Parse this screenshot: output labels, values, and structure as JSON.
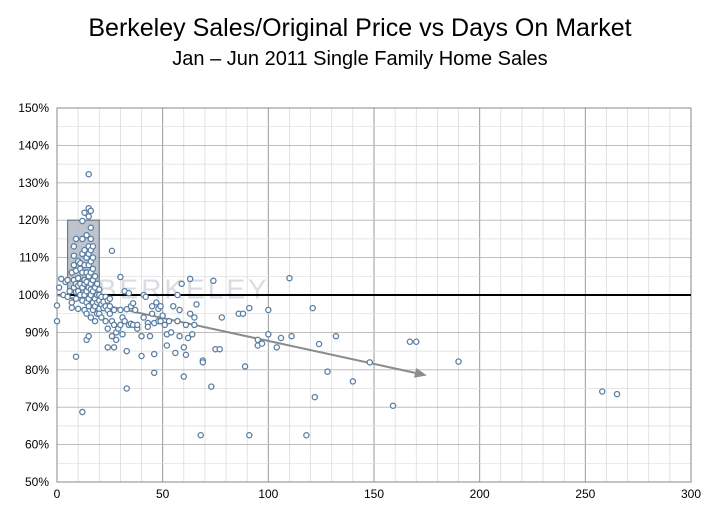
{
  "chart_data": {
    "type": "scatter",
    "title": "Berkeley Sales/Original Price vs Days On Market",
    "subtitle": "Jan – Jun 2011 Single Family Home Sales",
    "xlabel": "",
    "ylabel": "",
    "xlim": [
      0,
      300
    ],
    "ylim": [
      50,
      150
    ],
    "x_ticks": [
      0,
      50,
      100,
      150,
      200,
      250,
      300
    ],
    "y_ticks": [
      50,
      60,
      70,
      80,
      90,
      100,
      110,
      120,
      130,
      140,
      150
    ],
    "y_tick_labels": [
      "50%",
      "60%",
      "70%",
      "80%",
      "90%",
      "100%",
      "110%",
      "120%",
      "130%",
      "140%",
      "150%"
    ],
    "grid": true,
    "watermark": "BERKELEY",
    "reference_line_y": 100,
    "trend_arrow": {
      "x1": 0,
      "y1": 100,
      "x2": 175,
      "y2": 78.5
    },
    "highlight_box": {
      "x0": 5,
      "x1": 20,
      "y0": 100,
      "y1": 120
    },
    "point_color": "#5b7fa3",
    "points": [
      [
        0,
        97.2
      ],
      [
        0,
        93
      ],
      [
        1,
        102
      ],
      [
        2,
        104.3
      ],
      [
        3,
        100
      ],
      [
        4,
        103.5
      ],
      [
        5,
        99.5
      ],
      [
        5,
        104
      ],
      [
        6,
        101
      ],
      [
        7,
        98
      ],
      [
        7,
        106
      ],
      [
        7,
        96.6
      ],
      [
        8,
        102
      ],
      [
        8,
        104
      ],
      [
        8,
        108
      ],
      [
        8,
        110.5
      ],
      [
        8,
        113
      ],
      [
        9,
        100.8
      ],
      [
        9,
        106.5
      ],
      [
        9,
        103
      ],
      [
        9,
        99
      ],
      [
        9,
        115
      ],
      [
        9,
        83.5
      ],
      [
        10,
        101
      ],
      [
        10,
        104.5
      ],
      [
        10,
        109
      ],
      [
        10,
        96.3
      ],
      [
        10,
        102.5
      ],
      [
        11,
        100
      ],
      [
        11,
        103
      ],
      [
        11,
        107
      ],
      [
        11,
        108.5
      ],
      [
        12,
        98.5
      ],
      [
        12,
        102
      ],
      [
        12,
        106
      ],
      [
        12,
        111
      ],
      [
        12,
        115
      ],
      [
        12,
        68.7
      ],
      [
        12,
        119.8
      ],
      [
        13,
        100
      ],
      [
        13,
        103
      ],
      [
        13,
        108
      ],
      [
        13,
        104
      ],
      [
        13,
        96
      ],
      [
        13,
        112
      ],
      [
        13,
        122
      ],
      [
        14,
        101
      ],
      [
        14,
        103.5
      ],
      [
        14,
        106
      ],
      [
        14,
        110
      ],
      [
        14,
        98
      ],
      [
        14,
        116
      ],
      [
        14,
        95
      ],
      [
        14,
        88
      ],
      [
        15,
        99
      ],
      [
        15,
        102
      ],
      [
        15,
        105
      ],
      [
        15,
        108
      ],
      [
        15,
        111
      ],
      [
        15,
        113
      ],
      [
        15,
        123.2
      ],
      [
        15,
        132.3
      ],
      [
        15,
        121
      ],
      [
        15,
        97
      ],
      [
        15,
        89
      ],
      [
        16,
        100
      ],
      [
        16,
        103
      ],
      [
        16,
        106
      ],
      [
        16,
        109
      ],
      [
        16,
        112
      ],
      [
        16,
        115
      ],
      [
        16,
        118
      ],
      [
        16,
        122.5
      ],
      [
        16,
        101.5
      ],
      [
        16,
        94
      ],
      [
        17,
        98
      ],
      [
        17,
        101
      ],
      [
        17,
        104
      ],
      [
        17,
        107
      ],
      [
        17,
        110
      ],
      [
        17,
        113
      ],
      [
        17,
        96
      ],
      [
        18,
        99
      ],
      [
        18,
        102
      ],
      [
        18,
        105
      ],
      [
        18,
        97
      ],
      [
        18,
        93
      ],
      [
        19,
        100
      ],
      [
        19,
        103
      ],
      [
        19,
        98
      ],
      [
        19,
        95
      ],
      [
        20,
        101.5
      ],
      [
        20,
        98.5
      ],
      [
        20,
        96.3
      ],
      [
        20,
        95
      ],
      [
        20,
        100
      ],
      [
        21,
        97.5
      ],
      [
        21,
        99.5
      ],
      [
        21,
        94
      ],
      [
        22,
        96.5
      ],
      [
        22,
        98.2
      ],
      [
        23,
        97
      ],
      [
        23,
        93
      ],
      [
        23,
        99.5
      ],
      [
        24,
        96
      ],
      [
        24,
        98.5
      ],
      [
        24,
        91
      ],
      [
        24,
        86
      ],
      [
        25,
        97
      ],
      [
        25,
        95
      ],
      [
        25,
        99
      ],
      [
        26,
        93
      ],
      [
        26,
        89
      ],
      [
        26,
        111.8
      ],
      [
        27,
        96
      ],
      [
        27,
        92
      ],
      [
        27,
        86
      ],
      [
        28,
        90
      ],
      [
        28,
        88
      ],
      [
        29,
        91
      ],
      [
        30,
        104.8
      ],
      [
        30,
        96
      ],
      [
        30,
        92
      ],
      [
        31,
        94
      ],
      [
        31,
        89.5
      ],
      [
        32,
        101
      ],
      [
        32,
        93
      ],
      [
        33,
        75
      ],
      [
        33,
        96.2
      ],
      [
        33,
        85
      ],
      [
        34,
        100.5
      ],
      [
        34,
        92
      ],
      [
        35,
        97
      ],
      [
        35,
        92.3
      ],
      [
        36,
        97.8
      ],
      [
        36,
        92
      ],
      [
        37,
        96
      ],
      [
        38,
        91
      ],
      [
        38,
        92
      ],
      [
        40,
        89
      ],
      [
        40,
        83.7
      ],
      [
        41,
        94
      ],
      [
        41,
        100
      ],
      [
        42,
        99.5
      ],
      [
        43,
        92.5
      ],
      [
        43,
        91.5
      ],
      [
        44,
        89
      ],
      [
        45,
        97
      ],
      [
        45,
        95
      ],
      [
        46,
        92.5
      ],
      [
        46,
        84.2
      ],
      [
        46,
        79.2
      ],
      [
        47,
        98
      ],
      [
        48,
        93
      ],
      [
        48,
        96.3
      ],
      [
        49,
        93
      ],
      [
        49,
        97
      ],
      [
        50,
        94.5
      ],
      [
        51,
        92
      ],
      [
        52,
        89.5
      ],
      [
        52,
        86.5
      ],
      [
        53,
        93
      ],
      [
        54,
        90
      ],
      [
        55,
        97
      ],
      [
        56,
        84.5
      ],
      [
        57,
        100
      ],
      [
        57,
        93
      ],
      [
        58,
        89
      ],
      [
        58,
        96
      ],
      [
        59,
        103
      ],
      [
        60,
        86
      ],
      [
        60,
        78.2
      ],
      [
        61,
        92
      ],
      [
        61,
        84
      ],
      [
        62,
        88.5
      ],
      [
        63,
        104.3
      ],
      [
        63,
        95
      ],
      [
        64,
        89.5
      ],
      [
        65,
        94
      ],
      [
        65,
        92
      ],
      [
        66,
        97.5
      ],
      [
        68,
        62.5
      ],
      [
        69,
        82.5
      ],
      [
        69,
        82
      ],
      [
        73,
        75.5
      ],
      [
        74,
        103.8
      ],
      [
        75,
        85.5
      ],
      [
        77,
        85.5
      ],
      [
        78,
        94
      ],
      [
        86,
        95
      ],
      [
        88,
        95
      ],
      [
        89,
        80.9
      ],
      [
        91,
        62.5
      ],
      [
        91,
        96.5
      ],
      [
        95,
        88
      ],
      [
        95,
        86.5
      ],
      [
        97,
        87
      ],
      [
        100,
        96
      ],
      [
        100,
        89.5
      ],
      [
        104,
        86
      ],
      [
        106,
        88.5
      ],
      [
        110,
        104.5
      ],
      [
        111,
        89
      ],
      [
        118,
        62.5
      ],
      [
        121,
        96.5
      ],
      [
        122,
        72.7
      ],
      [
        124,
        86.9
      ],
      [
        128,
        79.5
      ],
      [
        132,
        89
      ],
      [
        140,
        76.9
      ],
      [
        148,
        82
      ],
      [
        159,
        70.4
      ],
      [
        167,
        87.5
      ],
      [
        170,
        87.5
      ],
      [
        190,
        82.2
      ],
      [
        258,
        74.2
      ],
      [
        265,
        73.5
      ]
    ]
  }
}
